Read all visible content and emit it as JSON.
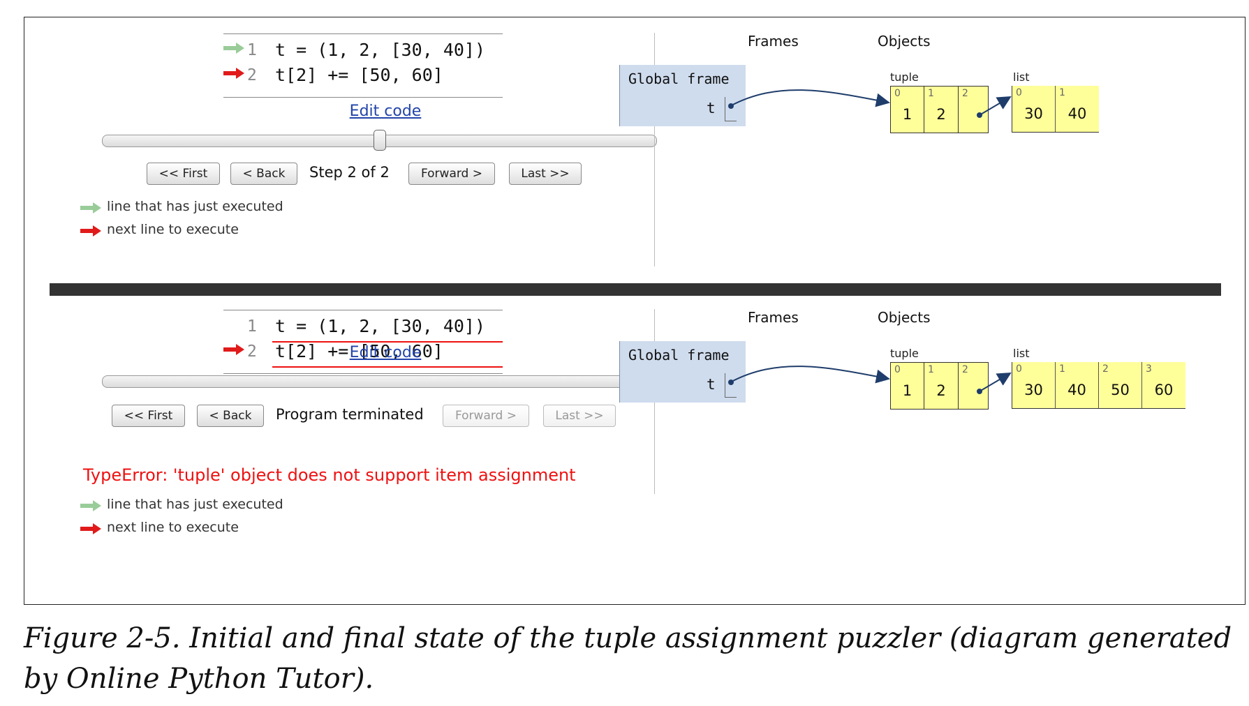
{
  "top_panel": {
    "code_lines": [
      {
        "num": "1",
        "src": "t = (1, 2, [30, 40])",
        "arrow": "green"
      },
      {
        "num": "2",
        "src": "t[2] += [50, 60]",
        "arrow": "red"
      }
    ],
    "edit_code": "Edit code",
    "slider_position_fraction": 0.5,
    "buttons": {
      "first": "<< First",
      "back": "< Back",
      "forward": "Forward >",
      "last": "Last >>"
    },
    "step_text": "Step 2 of 2",
    "legend": {
      "just_executed": "line that has just executed",
      "next_line": "next line to execute"
    },
    "frames_heading": "Frames",
    "objects_heading": "Objects",
    "global_frame": "Global frame",
    "var_name": "t",
    "tuple_label": "tuple",
    "tuple_cells": [
      {
        "i": "0",
        "v": "1"
      },
      {
        "i": "1",
        "v": "2"
      },
      {
        "i": "2",
        "v": ""
      }
    ],
    "list_label": "list",
    "list_cells": [
      {
        "i": "0",
        "v": "30"
      },
      {
        "i": "1",
        "v": "40"
      }
    ]
  },
  "bottom_panel": {
    "code_lines": [
      {
        "num": "1",
        "src": "t = (1, 2, [30, 40])",
        "arrow": "none"
      },
      {
        "num": "2",
        "src": "t[2] += [50, 60]",
        "arrow": "red"
      }
    ],
    "edit_code": "Edit code",
    "slider_position_fraction": 1.0,
    "buttons": {
      "first": "<< First",
      "back": "< Back",
      "forward": "Forward >",
      "last": "Last >>"
    },
    "step_text": "Program terminated",
    "error": "TypeError: 'tuple' object does not support item assignment",
    "legend": {
      "just_executed": "line that has just executed",
      "next_line": "next line to execute"
    },
    "frames_heading": "Frames",
    "objects_heading": "Objects",
    "global_frame": "Global frame",
    "var_name": "t",
    "tuple_label": "tuple",
    "tuple_cells": [
      {
        "i": "0",
        "v": "1"
      },
      {
        "i": "1",
        "v": "2"
      },
      {
        "i": "2",
        "v": ""
      }
    ],
    "list_label": "list",
    "list_cells": [
      {
        "i": "0",
        "v": "30"
      },
      {
        "i": "1",
        "v": "40"
      },
      {
        "i": "2",
        "v": "50"
      },
      {
        "i": "3",
        "v": "60"
      }
    ]
  },
  "caption": "Figure 2-5. Initial and final state of the tuple assignment puzzler (diagram generated by Online Python Tutor).",
  "colors": {
    "green_arrow": "#99cc99",
    "red_arrow": "#e11a1a",
    "frame_bg": "#cfdcee",
    "object_bg": "#ffff9a",
    "link": "#2244aa",
    "error": "#e11111"
  }
}
